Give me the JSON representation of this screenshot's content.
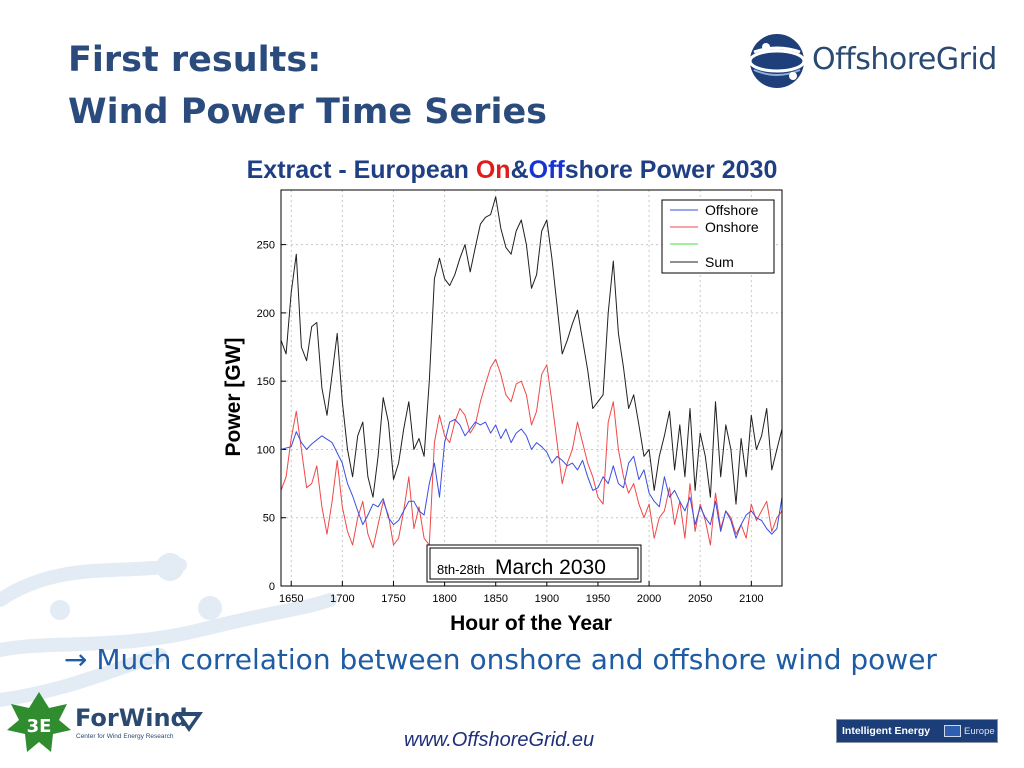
{
  "slide": {
    "title_line1": "First results:",
    "title_line2": "Wind Power Time Series",
    "logo_text": "OffshoreGrid",
    "subtitle_prefix": "Extract - European ",
    "subtitle_on": "On",
    "subtitle_amp": "&",
    "subtitle_off": "Off",
    "subtitle_suffix": "shore Power 2030",
    "arrow_glyph": "→",
    "conclusion": "Much correlation between onshore and offshore wind power",
    "footer_url": "www.OffshoreGrid.eu",
    "forwind_name": "ForWind",
    "forwind_sub": "Center for Wind Energy Research",
    "threee_logo": "3E",
    "iee_text": "Intelligent Energy",
    "iee_region": "Europe"
  },
  "colors": {
    "title": "#2a4b7c",
    "offshore": "#3b4fe0",
    "onshore": "#f04848",
    "green": "#40dc40",
    "sum": "#202020"
  },
  "chart_data": {
    "type": "line",
    "xlabel": "Hour of the Year",
    "ylabel": "Power [GW]",
    "xlim": [
      1640,
      2130
    ],
    "ylim": [
      0,
      290
    ],
    "xticks": [
      1650,
      1700,
      1750,
      1800,
      1850,
      1900,
      1950,
      2000,
      2050,
      2100
    ],
    "yticks": [
      0,
      50,
      100,
      150,
      200,
      250
    ],
    "grid": true,
    "legend_position": "top-right",
    "annotation_small": "8th-28th",
    "annotation_large": "March 2030",
    "series": [
      {
        "name": "Offshore",
        "key": "offshore",
        "x": [
          1640,
          1650,
          1655,
          1660,
          1665,
          1670,
          1680,
          1690,
          1700,
          1705,
          1710,
          1715,
          1720,
          1725,
          1730,
          1735,
          1740,
          1745,
          1750,
          1755,
          1760,
          1765,
          1770,
          1775,
          1780,
          1785,
          1790,
          1795,
          1800,
          1805,
          1810,
          1815,
          1820,
          1825,
          1830,
          1835,
          1840,
          1845,
          1850,
          1855,
          1860,
          1865,
          1870,
          1875,
          1880,
          1885,
          1890,
          1895,
          1900,
          1905,
          1910,
          1915,
          1920,
          1925,
          1930,
          1935,
          1940,
          1945,
          1950,
          1955,
          1960,
          1965,
          1970,
          1975,
          1980,
          1985,
          1990,
          1995,
          2000,
          2005,
          2010,
          2015,
          2020,
          2025,
          2030,
          2035,
          2040,
          2045,
          2050,
          2055,
          2060,
          2065,
          2070,
          2075,
          2080,
          2085,
          2090,
          2095,
          2100,
          2105,
          2110,
          2115,
          2120,
          2125,
          2130
        ],
        "y": [
          100,
          102,
          113,
          105,
          100,
          104,
          110,
          105,
          90,
          75,
          66,
          55,
          45,
          52,
          60,
          58,
          64,
          50,
          45,
          48,
          55,
          62,
          62,
          55,
          52,
          75,
          90,
          65,
          105,
          120,
          122,
          118,
          110,
          115,
          120,
          118,
          120,
          112,
          118,
          108,
          115,
          105,
          112,
          115,
          110,
          100,
          105,
          102,
          98,
          90,
          95,
          92,
          88,
          90,
          85,
          92,
          80,
          70,
          72,
          80,
          75,
          88,
          75,
          72,
          90,
          95,
          78,
          85,
          68,
          62,
          58,
          80,
          65,
          70,
          62,
          55,
          65,
          45,
          58,
          50,
          45,
          62,
          40,
          55,
          48,
          35,
          45,
          52,
          55,
          50,
          48,
          42,
          38,
          42,
          65
        ]
      },
      {
        "name": "Onshore",
        "key": "onshore",
        "x": [
          1640,
          1645,
          1650,
          1655,
          1660,
          1665,
          1670,
          1675,
          1680,
          1685,
          1690,
          1695,
          1700,
          1705,
          1710,
          1715,
          1720,
          1725,
          1730,
          1735,
          1740,
          1745,
          1750,
          1755,
          1760,
          1765,
          1770,
          1775,
          1780,
          1785,
          1790,
          1795,
          1800,
          1805,
          1810,
          1815,
          1820,
          1825,
          1830,
          1835,
          1840,
          1845,
          1850,
          1855,
          1860,
          1865,
          1870,
          1875,
          1880,
          1885,
          1890,
          1895,
          1900,
          1905,
          1910,
          1915,
          1920,
          1925,
          1930,
          1935,
          1940,
          1945,
          1950,
          1955,
          1960,
          1965,
          1970,
          1975,
          1980,
          1985,
          1990,
          1995,
          2000,
          2005,
          2010,
          2015,
          2020,
          2025,
          2030,
          2035,
          2040,
          2045,
          2050,
          2055,
          2060,
          2065,
          2070,
          2075,
          2080,
          2085,
          2090,
          2095,
          2100,
          2105,
          2110,
          2115,
          2120,
          2125,
          2130
        ],
        "y": [
          70,
          80,
          108,
          128,
          100,
          72,
          75,
          88,
          58,
          38,
          62,
          92,
          58,
          40,
          30,
          50,
          62,
          38,
          28,
          45,
          62,
          52,
          30,
          35,
          55,
          80,
          42,
          58,
          35,
          30,
          105,
          125,
          110,
          105,
          120,
          130,
          125,
          112,
          118,
          135,
          148,
          160,
          166,
          155,
          140,
          135,
          148,
          150,
          140,
          118,
          128,
          155,
          162,
          135,
          105,
          75,
          90,
          100,
          120,
          105,
          90,
          80,
          65,
          60,
          120,
          135,
          100,
          80,
          68,
          75,
          60,
          50,
          60,
          35,
          50,
          55,
          72,
          45,
          62,
          35,
          75,
          40,
          60,
          48,
          30,
          68,
          42,
          55,
          50,
          38,
          45,
          35,
          60,
          48,
          55,
          62,
          40,
          50,
          55
        ]
      },
      {
        "name": "",
        "key": "green",
        "x": [],
        "y": []
      },
      {
        "name": "Sum",
        "key": "sum",
        "x": [
          1640,
          1645,
          1650,
          1655,
          1660,
          1665,
          1670,
          1675,
          1680,
          1685,
          1690,
          1695,
          1700,
          1705,
          1710,
          1715,
          1720,
          1725,
          1730,
          1735,
          1740,
          1745,
          1750,
          1755,
          1760,
          1765,
          1770,
          1775,
          1780,
          1785,
          1790,
          1795,
          1800,
          1805,
          1810,
          1815,
          1820,
          1825,
          1830,
          1835,
          1840,
          1845,
          1850,
          1855,
          1860,
          1865,
          1870,
          1875,
          1880,
          1885,
          1890,
          1895,
          1900,
          1905,
          1910,
          1915,
          1920,
          1925,
          1930,
          1935,
          1940,
          1945,
          1950,
          1955,
          1960,
          1965,
          1970,
          1975,
          1980,
          1985,
          1990,
          1995,
          2000,
          2005,
          2010,
          2015,
          2020,
          2025,
          2030,
          2035,
          2040,
          2045,
          2050,
          2055,
          2060,
          2065,
          2070,
          2075,
          2080,
          2085,
          2090,
          2095,
          2100,
          2105,
          2110,
          2115,
          2120,
          2125,
          2130
        ],
        "y": [
          180,
          170,
          215,
          243,
          175,
          165,
          190,
          193,
          145,
          125,
          155,
          185,
          135,
          100,
          80,
          110,
          120,
          80,
          65,
          95,
          138,
          120,
          78,
          90,
          115,
          135,
          100,
          108,
          95,
          150,
          225,
          240,
          225,
          220,
          228,
          240,
          250,
          230,
          248,
          265,
          270,
          272,
          285,
          262,
          248,
          243,
          260,
          268,
          250,
          218,
          228,
          260,
          268,
          240,
          205,
          170,
          180,
          192,
          202,
          180,
          158,
          130,
          135,
          140,
          200,
          238,
          185,
          160,
          130,
          140,
          118,
          95,
          100,
          70,
          95,
          110,
          128,
          85,
          118,
          80,
          130,
          70,
          112,
          95,
          65,
          135,
          80,
          118,
          100,
          60,
          108,
          80,
          125,
          100,
          110,
          130,
          85,
          100,
          115
        ]
      }
    ]
  }
}
